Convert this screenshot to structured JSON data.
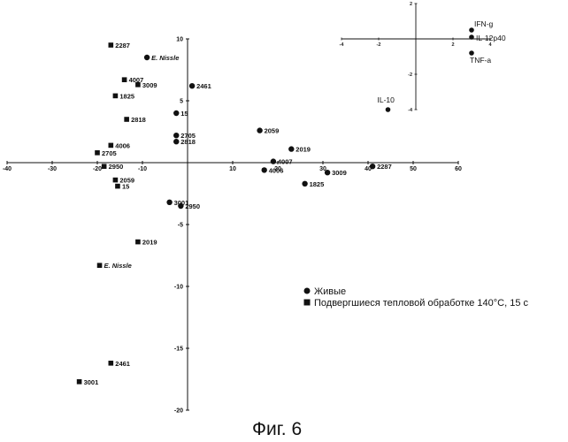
{
  "caption": "Фиг. 6",
  "chart_data": {
    "type": "scatter",
    "xlim": [
      -40,
      60
    ],
    "ylim": [
      -20,
      10
    ],
    "x_ticks": [
      "-40",
      "-30",
      "-20",
      "-10",
      "10",
      "20",
      "30",
      "40",
      "50",
      "60"
    ],
    "y_ticks": [
      "10",
      "5",
      "-5",
      "-10",
      "-15",
      "-20"
    ],
    "legend_position": "bottom-right",
    "series": [
      {
        "name": "Живые",
        "marker": "circle",
        "points": [
          {
            "label": "E. Nissle",
            "x": -9,
            "y": 8.5
          },
          {
            "label": "2461",
            "x": 1,
            "y": 6.2
          },
          {
            "label": "15",
            "x": -2.5,
            "y": 4.0
          },
          {
            "label": "2705",
            "x": -2.5,
            "y": 2.2
          },
          {
            "label": "2818",
            "x": -2.5,
            "y": 1.7
          },
          {
            "label": "2059",
            "x": 16,
            "y": 2.6
          },
          {
            "label": "2019",
            "x": 23,
            "y": 1.1
          },
          {
            "label": "4007",
            "x": 19,
            "y": 0.1
          },
          {
            "label": "4006",
            "x": 17,
            "y": -0.6
          },
          {
            "label": "3009",
            "x": 31,
            "y": -0.8
          },
          {
            "label": "2287",
            "x": 41,
            "y": -0.3
          },
          {
            "label": "1825",
            "x": 26,
            "y": -1.7
          },
          {
            "label": "3001",
            "x": -4,
            "y": -3.2
          },
          {
            "label": "2950",
            "x": -1.5,
            "y": -3.5
          }
        ]
      },
      {
        "name": "Подвергшиеся тепловой обработке 140°C, 15 с",
        "marker": "square",
        "points": [
          {
            "label": "2287",
            "x": -17,
            "y": 9.5
          },
          {
            "label": "4007",
            "x": -14,
            "y": 6.7
          },
          {
            "label": "3009",
            "x": -11,
            "y": 6.3
          },
          {
            "label": "1825",
            "x": -16,
            "y": 5.4
          },
          {
            "label": "2818",
            "x": -13.5,
            "y": 3.5
          },
          {
            "label": "4006",
            "x": -17,
            "y": 1.4
          },
          {
            "label": "2705",
            "x": -20,
            "y": 0.8
          },
          {
            "label": "2950",
            "x": -18.5,
            "y": -0.3
          },
          {
            "label": "2059",
            "x": -16,
            "y": -1.4
          },
          {
            "label": "15",
            "x": -15.5,
            "y": -1.9
          },
          {
            "label": "2019",
            "x": -11,
            "y": -6.4
          },
          {
            "label": "E. Nissle",
            "x": -19.5,
            "y": -8.3
          },
          {
            "label": "2461",
            "x": -17,
            "y": -16.2
          },
          {
            "label": "3001",
            "x": -24,
            "y": -17.7
          }
        ]
      }
    ],
    "inset": {
      "xlim": [
        -4,
        4
      ],
      "ylim": [
        -4,
        2
      ],
      "x_ticks": [
        "-4",
        "-2",
        "2",
        "4"
      ],
      "y_ticks": [
        "2",
        "-2",
        "-4"
      ],
      "points": [
        {
          "label": "IFN-g",
          "x": 3.0,
          "y": 0.5
        },
        {
          "label": "IL-12p40",
          "x": 3.0,
          "y": 0.1
        },
        {
          "label": "TNF-a",
          "x": 3.0,
          "y": -0.8
        },
        {
          "label": "IL-10",
          "x": -1.5,
          "y": -4.0
        }
      ]
    }
  }
}
